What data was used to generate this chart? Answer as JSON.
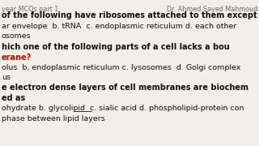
{
  "bg_color": "#f2efe9",
  "header_left": "year MCQs part 1",
  "header_right": "Dr. Ahmed Sayed Mahmoud",
  "header_color": "#666666",
  "header_fontsize": 5.8,
  "lines": [
    {
      "text": "of the following have ribosomes attached to them except",
      "bold": true,
      "color": "#111111",
      "fontsize": 7.0,
      "xpx": 2,
      "ypx": 14
    },
    {
      "text": "ar envelope  b. tRNA  c. endoplasmic reticulum d. each other",
      "bold": false,
      "color": "#111111",
      "fontsize": 6.8,
      "xpx": 2,
      "ypx": 28
    },
    {
      "text": "osomes",
      "bold": false,
      "color": "#111111",
      "fontsize": 6.8,
      "xpx": 2,
      "ypx": 40
    },
    {
      "text": "hich one of the following parts of a cell lacks a bou",
      "bold": true,
      "color": "#111111",
      "fontsize": 7.0,
      "xpx": 2,
      "ypx": 53
    },
    {
      "text": "erane?",
      "bold": true,
      "color": "#cc0000",
      "fontsize": 7.0,
      "xpx": 2,
      "ypx": 66
    },
    {
      "text": "olus  b. endoplasmic reticulum c. lysosomes  d. Golgi complex",
      "bold": false,
      "color": "#111111",
      "fontsize": 6.8,
      "xpx": 2,
      "ypx": 79
    },
    {
      "text": "us",
      "bold": false,
      "color": "#111111",
      "fontsize": 6.8,
      "xpx": 2,
      "ypx": 91
    },
    {
      "text": "e electron dense layers of cell membranes are biochem",
      "bold": true,
      "color": "#111111",
      "fontsize": 7.0,
      "xpx": 2,
      "ypx": 103
    },
    {
      "text": "ed as",
      "bold": true,
      "color": "#111111",
      "fontsize": 7.0,
      "xpx": 2,
      "ypx": 116
    },
    {
      "text": "ohydrate b. glycolipid  c. sialic acid d. phospholipid-protein con",
      "bold": false,
      "color": "#111111",
      "fontsize": 6.8,
      "xpx": 2,
      "ypx": 129,
      "underline": true,
      "ul_x1px": 91,
      "ul_x2px": 113,
      "ul_ypx": 137
    },
    {
      "text": "phase between lipid layers",
      "bold": false,
      "color": "#111111",
      "fontsize": 6.8,
      "xpx": 2,
      "ypx": 142
    }
  ]
}
